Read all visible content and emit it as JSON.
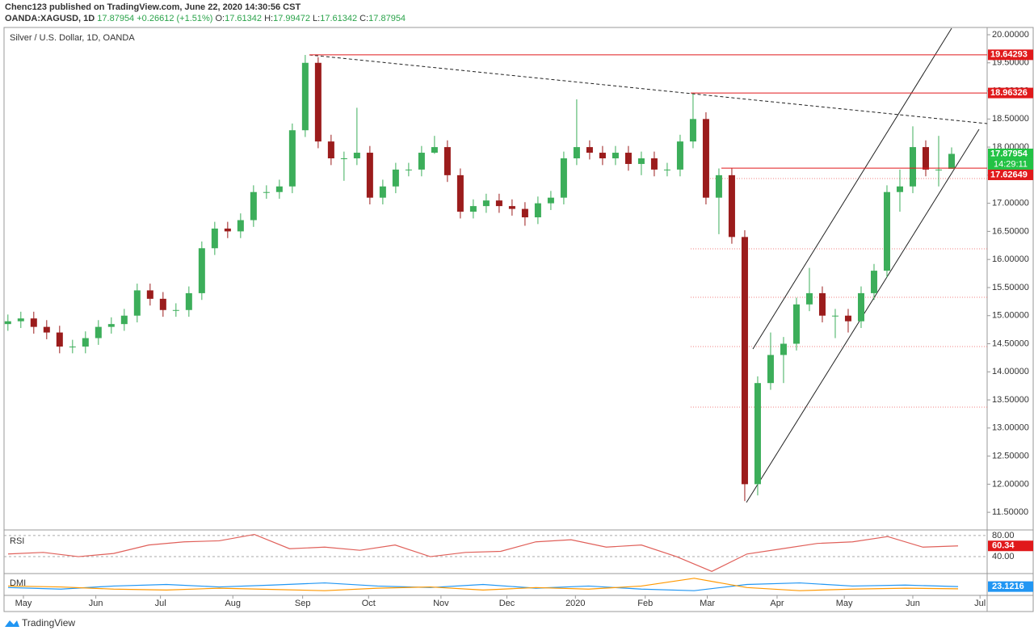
{
  "header": {
    "publisher": "Chenc123 published on TradingView.com, June 22, 2020 14:30:56 CST",
    "symbol": "OANDA:XAGUSD, 1D",
    "last": "17.87954",
    "change": "+0.26612 (+1.51%)",
    "ohlc": [
      {
        "label": "O:",
        "value": "17.61342"
      },
      {
        "label": "H:",
        "value": "17.99472"
      },
      {
        "label": "L:",
        "value": "17.61342"
      },
      {
        "label": "C:",
        "value": "17.87954"
      }
    ]
  },
  "chart_data": [
    {
      "type": "candlestick",
      "title": "Silver / U.S. Dollar, 1D, OANDA",
      "color_up": "#3cae5a",
      "color_down": "#9b1c1c",
      "open": [
        14.85,
        14.9,
        14.95,
        14.8,
        14.7,
        14.45,
        14.45,
        14.6,
        14.8,
        14.85,
        15.0,
        15.45,
        15.3,
        15.1,
        15.1,
        15.4,
        16.2,
        16.55,
        16.5,
        16.7,
        17.2,
        17.2,
        17.3,
        18.3,
        19.5,
        18.1,
        17.8,
        17.8,
        17.9,
        17.1,
        17.3,
        17.6,
        17.6,
        17.9,
        18.0,
        17.5,
        16.85,
        16.95,
        17.05,
        16.95,
        16.9,
        16.75,
        17.0,
        17.1,
        17.8,
        18.0,
        17.9,
        17.8,
        17.9,
        17.7,
        17.8,
        17.6,
        17.6,
        18.1,
        18.5,
        17.1,
        17.5,
        16.4,
        12.0,
        13.8,
        14.3,
        14.5,
        15.2,
        15.4,
        15.0,
        15.0,
        14.9,
        15.4,
        15.8,
        17.2,
        17.3,
        18.0,
        17.6,
        17.61342
      ],
      "high": [
        15.02,
        15.07,
        15.07,
        14.92,
        14.82,
        14.57,
        14.72,
        14.92,
        14.97,
        15.12,
        15.57,
        15.57,
        15.42,
        15.22,
        15.52,
        16.32,
        16.67,
        16.67,
        16.82,
        17.32,
        17.32,
        17.42,
        18.42,
        19.64,
        19.6,
        18.22,
        17.92,
        18.7,
        18.02,
        17.42,
        17.72,
        17.72,
        18.02,
        18.2,
        18.12,
        17.62,
        17.07,
        17.17,
        17.17,
        17.07,
        17.02,
        17.12,
        17.22,
        17.92,
        18.85,
        18.12,
        18.02,
        18.02,
        18.02,
        17.92,
        17.92,
        17.72,
        18.22,
        18.96,
        18.62,
        17.62,
        17.62,
        16.52,
        13.92,
        14.7,
        14.62,
        15.32,
        15.85,
        15.52,
        15.12,
        15.12,
        15.52,
        15.92,
        17.32,
        17.6,
        18.37,
        18.12,
        18.2,
        17.99472
      ],
      "low": [
        14.73,
        14.78,
        14.68,
        14.58,
        14.33,
        14.33,
        14.33,
        14.48,
        14.68,
        14.73,
        14.88,
        15.18,
        14.98,
        14.98,
        14.98,
        15.28,
        16.08,
        16.38,
        16.38,
        16.58,
        17.08,
        17.08,
        17.18,
        18.18,
        17.98,
        17.68,
        17.4,
        17.68,
        16.98,
        16.98,
        17.18,
        17.48,
        17.48,
        17.88,
        17.38,
        16.73,
        16.73,
        16.83,
        16.83,
        16.78,
        16.6,
        16.63,
        16.88,
        16.98,
        17.68,
        17.78,
        17.68,
        17.68,
        17.58,
        17.5,
        17.48,
        17.48,
        17.48,
        17.98,
        16.98,
        16.45,
        16.28,
        11.7,
        11.8,
        13.68,
        13.8,
        14.38,
        15.08,
        14.88,
        14.6,
        14.7,
        14.78,
        15.28,
        15.68,
        16.85,
        17.18,
        17.48,
        17.3,
        17.61342
      ],
      "close": [
        14.9,
        14.95,
        14.8,
        14.7,
        14.45,
        14.45,
        14.6,
        14.8,
        14.85,
        15.0,
        15.45,
        15.3,
        15.1,
        15.1,
        15.4,
        16.2,
        16.55,
        16.5,
        16.7,
        17.2,
        17.2,
        17.3,
        18.3,
        19.5,
        18.1,
        17.8,
        17.8,
        17.9,
        17.1,
        17.3,
        17.6,
        17.6,
        17.9,
        18.0,
        17.5,
        16.85,
        16.95,
        17.05,
        16.95,
        16.9,
        16.75,
        17.0,
        17.1,
        17.8,
        18.0,
        17.9,
        17.8,
        17.9,
        17.7,
        17.8,
        17.6,
        17.6,
        18.1,
        18.5,
        17.1,
        17.5,
        16.4,
        12.0,
        13.8,
        14.3,
        14.5,
        15.2,
        15.4,
        15.0,
        15.0,
        14.9,
        15.4,
        15.8,
        17.2,
        17.3,
        18.0,
        17.6,
        17.6,
        17.87954
      ],
      "xlim": [
        -0.3,
        75.75
      ],
      "xticks": [
        {
          "value": 1.2,
          "label": "May"
        },
        {
          "value": 6.8,
          "label": "Jun"
        },
        {
          "value": 11.8,
          "label": "Jul"
        },
        {
          "value": 17.4,
          "label": "Aug"
        },
        {
          "value": 22.8,
          "label": "Sep"
        },
        {
          "value": 27.9,
          "label": "Oct"
        },
        {
          "value": 33.5,
          "label": "Nov"
        },
        {
          "value": 38.6,
          "label": "Dec"
        },
        {
          "value": 43.9,
          "label": "2020"
        },
        {
          "value": 49.3,
          "label": "Feb"
        },
        {
          "value": 54.1,
          "label": "Mar"
        },
        {
          "value": 59.5,
          "label": "Apr"
        },
        {
          "value": 64.7,
          "label": "May"
        },
        {
          "value": 70,
          "label": "Jun"
        },
        {
          "value": 75.2,
          "label": "Jul"
        }
      ],
      "ylim": [
        11.2,
        20.115
      ],
      "yticks": [
        {
          "value": 11.5,
          "label": "11.50000"
        },
        {
          "value": 12,
          "label": "12.00000"
        },
        {
          "value": 12.5,
          "label": "12.50000"
        },
        {
          "value": 13,
          "label": "13.00000"
        },
        {
          "value": 13.5,
          "label": "13.50000"
        },
        {
          "value": 14,
          "label": "14.00000"
        },
        {
          "value": 14.5,
          "label": "14.50000"
        },
        {
          "value": 15,
          "label": "15.00000"
        },
        {
          "value": 15.5,
          "label": "15.50000"
        },
        {
          "value": 16,
          "label": "16.00000"
        },
        {
          "value": 16.5,
          "label": "16.50000"
        },
        {
          "value": 17,
          "label": "17.00000"
        },
        {
          "value": 17.5,
          "label": "17.50000"
        },
        {
          "value": 18,
          "label": "18.00000"
        },
        {
          "value": 18.5,
          "label": "18.50000"
        },
        {
          "value": 19,
          "label": "19.00000"
        },
        {
          "value": 19.5,
          "label": "19.50000"
        },
        {
          "value": 20,
          "label": "20.00000"
        }
      ],
      "price_tags": [
        {
          "value": 19.64293,
          "label": "19.64293",
          "color": "#e0191b"
        },
        {
          "value": 18.96326,
          "label": "18.96326",
          "color": "#e0191b"
        },
        {
          "value": 17.87954,
          "label": "17.87954",
          "color": "#22c244",
          "countdown": "14:29:11"
        },
        {
          "value": 17.62649,
          "label": "17.62649",
          "color": "#e0191b"
        }
      ]
    },
    {
      "type": "line",
      "title": "RSI",
      "color": "#e0605a",
      "ylim": [
        11,
        89
      ],
      "yticks": [
        {
          "value": 80,
          "label": "80.00"
        },
        {
          "value": 40,
          "label": "40.00"
        }
      ],
      "values": [
        45,
        48,
        40,
        46,
        62,
        68,
        70,
        82,
        55,
        58,
        52,
        62,
        40,
        48,
        50,
        68,
        72,
        58,
        62,
        40,
        12,
        45,
        55,
        65,
        68,
        78,
        58,
        60.34
      ],
      "tag": {
        "value": 60.34,
        "label": "60.34",
        "color": "#e0191b"
      }
    },
    {
      "type": "line",
      "title": "DMI",
      "ylim": [
        0,
        60
      ],
      "series": [
        {
          "name": "+DI",
          "color": "#2196f3",
          "values": [
            20,
            15,
            25,
            30,
            22,
            28,
            35,
            25,
            20,
            30,
            18,
            25,
            15,
            10,
            30,
            35,
            25,
            28,
            23.1216
          ]
        },
        {
          "name": "-DI",
          "color": "#ff9800",
          "values": [
            25,
            22,
            15,
            12,
            18,
            14,
            10,
            18,
            22,
            12,
            20,
            15,
            25,
            50,
            20,
            10,
            15,
            18,
            16
          ]
        }
      ],
      "tag": {
        "value": 23.1216,
        "label": "23.1216",
        "color": "#2196f3"
      }
    }
  ],
  "footer": "TradingView"
}
